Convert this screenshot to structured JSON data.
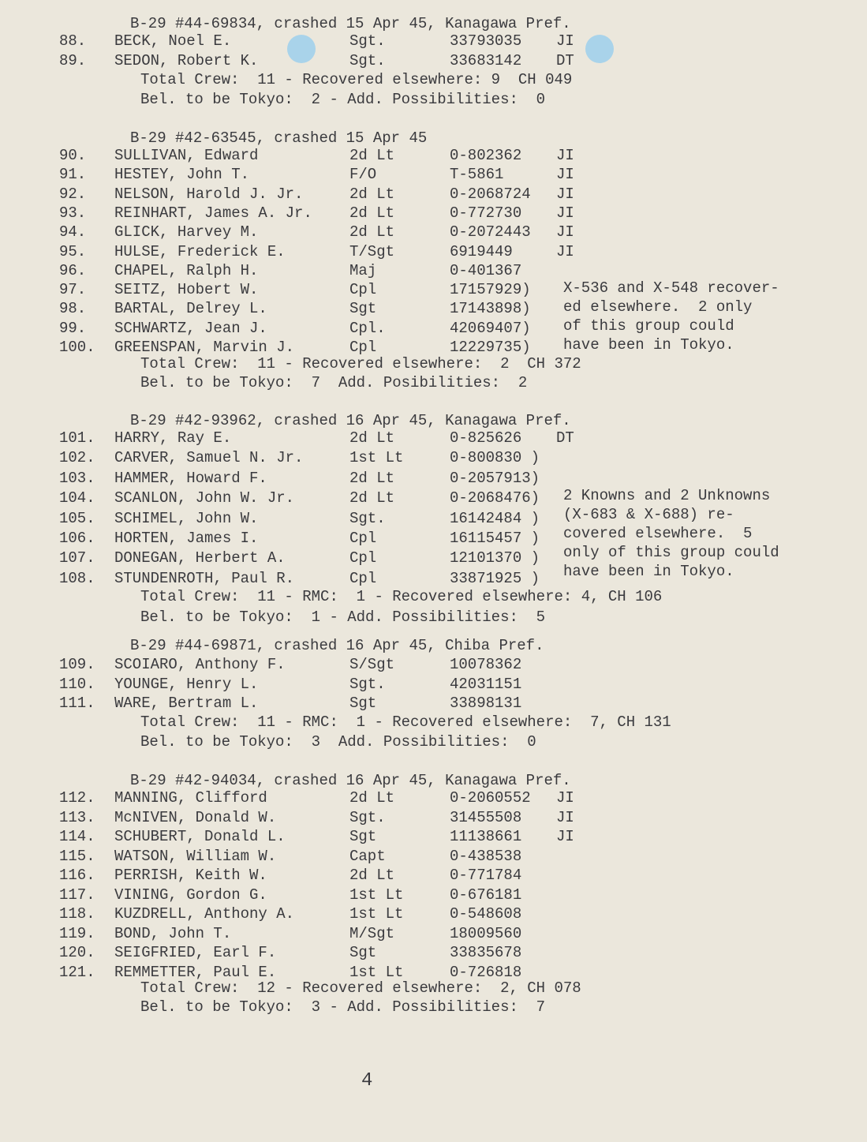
{
  "page_number": "4",
  "sections": [
    {
      "header": "B-29 #44-69834, crashed 15 Apr 45, Kanagawa Pref.",
      "rows": [
        {
          "num": "88.",
          "name": "BECK, Noel E.",
          "rank": "Sgt.",
          "serial": "33793035",
          "status": "JI"
        },
        {
          "num": "89.",
          "name": "SEDON, Robert K.",
          "rank": "Sgt.",
          "serial": "33683142",
          "status": "DT"
        }
      ],
      "notes": [],
      "total": "Total Crew:  11 - Recovered elsewhere: 9  CH 049",
      "bel": "Bel. to be Tokyo:  2 - Add. Possibilities:  0"
    },
    {
      "header": "B-29 #42-63545, crashed 15 Apr 45",
      "rows": [
        {
          "num": "90.",
          "name": "SULLIVAN, Edward",
          "rank": "2d Lt",
          "serial": "0-802362",
          "status": "JI"
        },
        {
          "num": "91.",
          "name": "HESTEY, John T.",
          "rank": "F/O",
          "serial": "T-5861",
          "status": "JI"
        },
        {
          "num": "92.",
          "name": "NELSON, Harold J. Jr.",
          "rank": "2d Lt",
          "serial": "0-2068724",
          "status": "JI"
        },
        {
          "num": "93.",
          "name": "REINHART, James A. Jr.",
          "rank": "2d Lt",
          "serial": "0-772730",
          "status": "JI"
        },
        {
          "num": "94.",
          "name": "GLICK, Harvey M.",
          "rank": "2d Lt",
          "serial": "0-2072443",
          "status": "JI"
        },
        {
          "num": "95.",
          "name": "HULSE, Frederick E.",
          "rank": "T/Sgt",
          "serial": "6919449",
          "status": "JI"
        },
        {
          "num": "96.",
          "name": "CHAPEL, Ralph H.",
          "rank": "Maj",
          "serial": "0-401367",
          "status": ""
        },
        {
          "num": "97.",
          "name": "SEITZ, Hobert W.",
          "rank": "Cpl",
          "serial": "17157929)",
          "status": ""
        },
        {
          "num": "98.",
          "name": "BARTAL, Delrey L.",
          "rank": "Sgt",
          "serial": "17143898)",
          "status": ""
        },
        {
          "num": "99.",
          "name": "SCHWARTZ, Jean J.",
          "rank": "Cpl.",
          "serial": "42069407)",
          "status": ""
        },
        {
          "num": "100.",
          "name": "GREENSPAN, Marvin J.",
          "rank": "Cpl",
          "serial": "12229735)",
          "status": ""
        }
      ],
      "notes": [
        "X-536 and X-548 recover-",
        "ed elsewhere.  2 only",
        "of this group could",
        "have been in Tokyo."
      ],
      "total": "Total Crew:  11 - Recovered elsewhere:  2  CH 372",
      "bel": "Bel. to be Tokyo:  7  Add. Posibilities:  2"
    },
    {
      "header": "B-29 #42-93962, crashed 16 Apr 45, Kanagawa Pref.",
      "rows": [
        {
          "num": "101.",
          "name": "HARRY, Ray E.",
          "rank": "2d Lt",
          "serial": "0-825626",
          "status": "DT"
        },
        {
          "num": "102.",
          "name": "CARVER, Samuel N. Jr.",
          "rank": "1st Lt",
          "serial": "0-800830 )",
          "status": ""
        },
        {
          "num": "103.",
          "name": "HAMMER, Howard F.",
          "rank": "2d Lt",
          "serial": "0-2057913)",
          "status": ""
        },
        {
          "num": "104.",
          "name": "SCANLON, John W. Jr.",
          "rank": "2d Lt",
          "serial": "0-2068476)",
          "status": ""
        },
        {
          "num": "105.",
          "name": "SCHIMEL, John W.",
          "rank": "Sgt.",
          "serial": "16142484 )",
          "status": ""
        },
        {
          "num": "106.",
          "name": "HORTEN, James I.",
          "rank": "Cpl",
          "serial": "16115457 )",
          "status": ""
        },
        {
          "num": "107.",
          "name": "DONEGAN, Herbert A.",
          "rank": "Cpl",
          "serial": "12101370 )",
          "status": ""
        },
        {
          "num": "108.",
          "name": "STUNDENROTH, Paul R.",
          "rank": "Cpl",
          "serial": "33871925 )",
          "status": ""
        }
      ],
      "notes": [
        "2 Knowns and 2 Unknowns",
        "(X-683 & X-688) re-",
        "covered elsewhere.  5",
        "only of this group could",
        "have been in Tokyo."
      ],
      "total": "Total Crew:  11 - RMC:  1 - Recovered elsewhere: 4, CH 106",
      "bel": "Bel. to be Tokyo:  1 - Add. Possibilities:  5"
    },
    {
      "header": "B-29 #44-69871, crashed 16 Apr 45, Chiba Pref.",
      "rows": [
        {
          "num": "109.",
          "name": "SCOIARO, Anthony F.",
          "rank": "S/Sgt",
          "serial": "10078362",
          "status": ""
        },
        {
          "num": "110.",
          "name": "YOUNGE, Henry L.",
          "rank": "Sgt.",
          "serial": "42031151",
          "status": ""
        },
        {
          "num": "111.",
          "name": "WARE, Bertram L.",
          "rank": "Sgt",
          "serial": "33898131",
          "status": ""
        }
      ],
      "notes": [],
      "total": "Total Crew:  11 - RMC:  1 - Recovered elsewhere:  7, CH 131",
      "bel": "Bel. to be Tokyo:  3  Add. Possibilities:  0"
    },
    {
      "header": "B-29 #42-94034, crashed 16 Apr 45, Kanagawa Pref.",
      "rows": [
        {
          "num": "112.",
          "name": "MANNING, Clifford",
          "rank": "2d Lt",
          "serial": "0-2060552",
          "status": "JI"
        },
        {
          "num": "113.",
          "name": "McNIVEN, Donald W.",
          "rank": "Sgt.",
          "serial": "31455508",
          "status": "JI"
        },
        {
          "num": "114.",
          "name": "SCHUBERT, Donald L.",
          "rank": "Sgt",
          "serial": "11138661",
          "status": "JI"
        },
        {
          "num": "115.",
          "name": "WATSON, William W.",
          "rank": "Capt",
          "serial": "0-438538",
          "status": ""
        },
        {
          "num": "116.",
          "name": "PERRISH, Keith W.",
          "rank": "2d Lt",
          "serial": "0-771784",
          "status": ""
        },
        {
          "num": "117.",
          "name": "VINING, Gordon G.",
          "rank": "1st Lt",
          "serial": "0-676181",
          "status": ""
        },
        {
          "num": "118.",
          "name": "KUZDRELL, Anthony A.",
          "rank": "1st Lt",
          "serial": "0-548608",
          "status": ""
        },
        {
          "num": "119.",
          "name": "BOND, John T.",
          "rank": "M/Sgt",
          "serial": "18009560",
          "status": ""
        },
        {
          "num": "120.",
          "name": "SEIGFRIED, Earl F.",
          "rank": "Sgt",
          "serial": "33835678",
          "status": ""
        },
        {
          "num": "121.",
          "name": "REMMETTER, Paul E.",
          "rank": "1st Lt",
          "serial": "0-726818",
          "status": ""
        }
      ],
      "notes": [],
      "total": "Total Crew:  12 - Recovered elsewhere:  2, CH 078",
      "bel": "Bel. to be Tokyo:  3 - Add. Possibilities:  7"
    }
  ]
}
